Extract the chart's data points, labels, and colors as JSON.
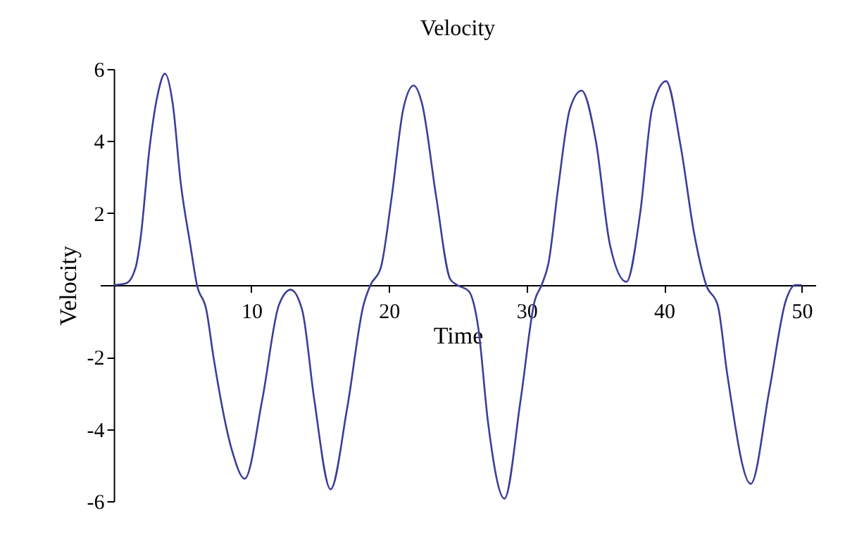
{
  "chart_data": {
    "type": "line",
    "title": "Velocity",
    "xlabel": "Time",
    "ylabel": "Velocity",
    "x": [
      0,
      0.9,
      1.6,
      1.95,
      2.6,
      3.2,
      3.72,
      4.3,
      4.87,
      5.56,
      6.05,
      6.73,
      7.25,
      8.6,
      9.52,
      10.8,
      12.0,
      12.86,
      13.7,
      14.57,
      15.76,
      16.96,
      18.15,
      18.66,
      19.41,
      20.2,
      21.05,
      21.8,
      22.4,
      23.44,
      24.46,
      24.97,
      25.8,
      26.5,
      27.2,
      28.4,
      29.58,
      30.6,
      31.1,
      31.6,
      32.3,
      33.16,
      34.0,
      35.04,
      36.06,
      37.26,
      38.28,
      39.13,
      40.15,
      41.2,
      42.2,
      43.06,
      43.9,
      44.6,
      46.3,
      47.66,
      48.85,
      49.54,
      50
    ],
    "series": [
      {
        "color": "#3d3d99",
        "values": [
          0,
          0.05,
          0.5,
          1.3,
          3.8,
          5.3,
          5.87,
          5.0,
          2.83,
          1.13,
          0,
          -0.69,
          -2.0,
          -4.6,
          -5.38,
          -3.17,
          -0.56,
          -0.13,
          -0.7,
          -3.17,
          -5.67,
          -3.43,
          -0.56,
          0,
          0.48,
          2.44,
          4.9,
          5.54,
          5.05,
          2.44,
          0.16,
          0,
          -0.17,
          -1.2,
          -3.8,
          -5.93,
          -3.17,
          -0.43,
          0,
          0.61,
          2.7,
          4.9,
          5.4,
          4.0,
          1.13,
          0.09,
          2.05,
          4.9,
          5.66,
          3.87,
          1.4,
          0,
          -0.56,
          -2.5,
          -5.52,
          -2.9,
          -0.43,
          0,
          0
        ]
      }
    ],
    "xlim": [
      -1,
      51
    ],
    "ylim": [
      -6,
      6
    ],
    "xticks": [
      10,
      20,
      30,
      40,
      50
    ],
    "yticks": [
      -6,
      -4,
      -2,
      2,
      4,
      6
    ],
    "grid": false,
    "marker": "none",
    "line_style": "solid"
  }
}
